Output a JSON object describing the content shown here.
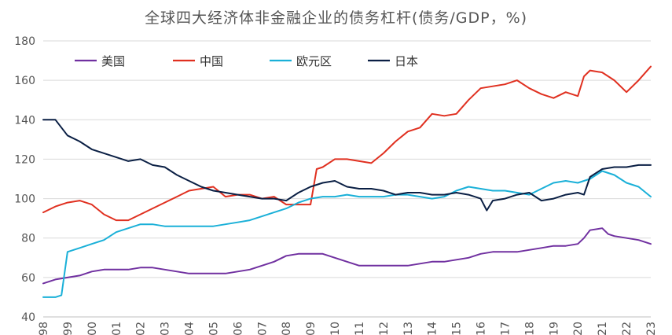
{
  "chart_data": {
    "type": "line",
    "title": "全球四大经济体非金融企业的债务杠杆(债务/GDP，%)",
    "xlabel": "",
    "ylabel": "",
    "ylim": [
      40,
      180
    ],
    "yticks": [
      40,
      60,
      80,
      100,
      120,
      140,
      160,
      180
    ],
    "xlim": [
      1998.0,
      2023.0
    ],
    "xticks": [
      "98",
      "99",
      "00",
      "01",
      "02",
      "03",
      "04",
      "05",
      "06",
      "07",
      "08",
      "09",
      "10",
      "11",
      "12",
      "13",
      "14",
      "15",
      "16",
      "17",
      "18",
      "19",
      "20",
      "21",
      "22",
      "23"
    ],
    "grid": true,
    "legend_position": "top-left",
    "series": [
      {
        "name": "美国",
        "color": "#7030a0",
        "x": [
          1998.0,
          1998.5,
          1999.0,
          1999.5,
          2000.0,
          2000.5,
          2001.0,
          2001.5,
          2002.0,
          2002.5,
          2003.0,
          2003.5,
          2004.0,
          2004.5,
          2005.0,
          2005.5,
          2006.0,
          2006.5,
          2007.0,
          2007.5,
          2008.0,
          2008.5,
          2009.0,
          2009.5,
          2010.0,
          2010.5,
          2011.0,
          2011.5,
          2012.0,
          2012.5,
          2013.0,
          2013.5,
          2014.0,
          2014.5,
          2015.0,
          2015.5,
          2016.0,
          2016.5,
          2017.0,
          2017.5,
          2018.0,
          2018.5,
          2019.0,
          2019.5,
          2020.0,
          2020.25,
          2020.5,
          2021.0,
          2021.25,
          2021.5,
          2022.0,
          2022.5,
          2023.0
        ],
        "values": [
          57,
          59,
          60,
          61,
          63,
          64,
          64,
          64,
          65,
          65,
          64,
          63,
          62,
          62,
          62,
          62,
          63,
          64,
          66,
          68,
          71,
          72,
          72,
          72,
          70,
          68,
          66,
          66,
          66,
          66,
          66,
          67,
          68,
          68,
          69,
          70,
          72,
          73,
          73,
          73,
          74,
          75,
          76,
          76,
          77,
          80,
          84,
          85,
          82,
          81,
          80,
          79,
          77
        ]
      },
      {
        "name": "中国",
        "color": "#e03020",
        "x": [
          1998.0,
          1998.5,
          1999.0,
          1999.5,
          2000.0,
          2000.5,
          2001.0,
          2001.5,
          2002.0,
          2002.5,
          2003.0,
          2003.5,
          2004.0,
          2004.5,
          2005.0,
          2005.5,
          2006.0,
          2006.5,
          2007.0,
          2007.5,
          2008.0,
          2008.5,
          2009.0,
          2009.25,
          2009.5,
          2010.0,
          2010.5,
          2011.0,
          2011.5,
          2012.0,
          2012.5,
          2013.0,
          2013.5,
          2014.0,
          2014.5,
          2015.0,
          2015.5,
          2016.0,
          2016.5,
          2017.0,
          2017.5,
          2018.0,
          2018.5,
          2019.0,
          2019.5,
          2020.0,
          2020.25,
          2020.5,
          2021.0,
          2021.5,
          2022.0,
          2022.5,
          2023.0
        ],
        "values": [
          93,
          96,
          98,
          99,
          97,
          92,
          89,
          89,
          92,
          95,
          98,
          101,
          104,
          105,
          106,
          101,
          102,
          102,
          100,
          101,
          97,
          97,
          97,
          115,
          116,
          120,
          120,
          119,
          118,
          123,
          129,
          134,
          136,
          143,
          142,
          143,
          150,
          156,
          157,
          158,
          160,
          156,
          153,
          151,
          154,
          152,
          162,
          165,
          164,
          160,
          154,
          160,
          167
        ]
      },
      {
        "name": "欧元区",
        "color": "#1ab0d8",
        "x": [
          1998.0,
          1998.5,
          1998.75,
          1999.0,
          1999.5,
          2000.0,
          2000.5,
          2001.0,
          2001.5,
          2002.0,
          2002.5,
          2003.0,
          2003.5,
          2004.0,
          2004.5,
          2005.0,
          2005.5,
          2006.0,
          2006.5,
          2007.0,
          2007.5,
          2008.0,
          2008.5,
          2009.0,
          2009.5,
          2010.0,
          2010.5,
          2011.0,
          2011.5,
          2012.0,
          2012.5,
          2013.0,
          2013.5,
          2014.0,
          2014.5,
          2015.0,
          2015.5,
          2016.0,
          2016.5,
          2017.0,
          2017.5,
          2018.0,
          2018.5,
          2019.0,
          2019.5,
          2020.0,
          2020.5,
          2021.0,
          2021.5,
          2022.0,
          2022.5,
          2023.0
        ],
        "values": [
          50,
          50,
          51,
          73,
          75,
          77,
          79,
          83,
          85,
          87,
          87,
          86,
          86,
          86,
          86,
          86,
          87,
          88,
          89,
          91,
          93,
          95,
          98,
          100,
          101,
          101,
          102,
          101,
          101,
          101,
          102,
          102,
          101,
          100,
          101,
          104,
          106,
          105,
          104,
          104,
          103,
          102,
          105,
          108,
          109,
          108,
          110,
          114,
          112,
          108,
          106,
          101
        ]
      },
      {
        "name": "日本",
        "color": "#0a1f44",
        "x": [
          1998.0,
          1998.5,
          1999.0,
          1999.5,
          2000.0,
          2000.5,
          2001.0,
          2001.5,
          2002.0,
          2002.5,
          2003.0,
          2003.5,
          2004.0,
          2004.5,
          2005.0,
          2005.5,
          2006.0,
          2006.5,
          2007.0,
          2007.5,
          2008.0,
          2008.5,
          2009.0,
          2009.5,
          2010.0,
          2010.5,
          2011.0,
          2011.5,
          2012.0,
          2012.5,
          2013.0,
          2013.5,
          2014.0,
          2014.5,
          2015.0,
          2015.5,
          2016.0,
          2016.25,
          2016.5,
          2017.0,
          2017.5,
          2018.0,
          2018.5,
          2019.0,
          2019.5,
          2020.0,
          2020.25,
          2020.5,
          2021.0,
          2021.5,
          2022.0,
          2022.5,
          2023.0
        ],
        "values": [
          140,
          140,
          132,
          129,
          125,
          123,
          121,
          119,
          120,
          117,
          116,
          112,
          109,
          106,
          104,
          103,
          102,
          101,
          100,
          100,
          99,
          103,
          106,
          108,
          109,
          106,
          105,
          105,
          104,
          102,
          103,
          103,
          102,
          102,
          103,
          102,
          100,
          94,
          99,
          100,
          102,
          103,
          99,
          100,
          102,
          103,
          102,
          111,
          115,
          116,
          116,
          117,
          117
        ]
      }
    ]
  }
}
